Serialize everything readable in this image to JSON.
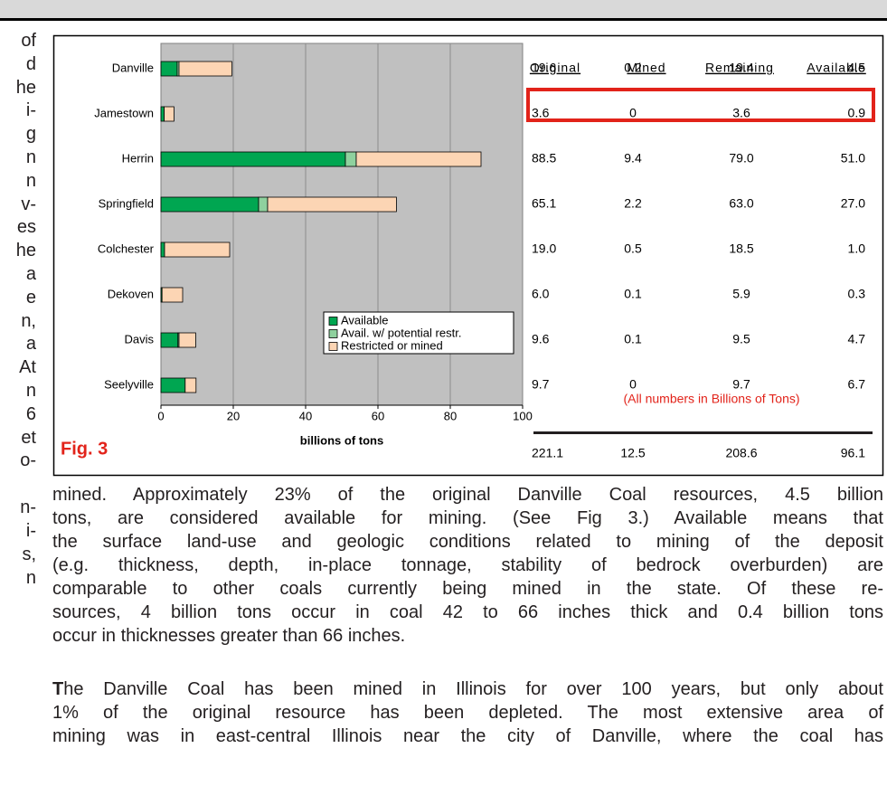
{
  "left_fragments": [
    "of",
    "d",
    "he",
    "i-",
    "g",
    "n",
    "n",
    "v-",
    "es",
    "he",
    "a",
    "e",
    "n,",
    "a",
    "At",
    "n",
    "6",
    "et",
    "o-",
    "n-",
    "i-",
    "s,",
    "n"
  ],
  "fig_label": "Fig. 3",
  "chart_data": {
    "type": "bar",
    "orientation": "horizontal",
    "stacked": true,
    "categories": [
      "Danville",
      "Jamestown",
      "Herrin",
      "Springfield",
      "Colchester",
      "Dekoven",
      "Davis",
      "Seelyville"
    ],
    "series": [
      {
        "name": "Available",
        "color": "#00a651",
        "values": [
          4.5,
          0.9,
          51,
          27,
          1.0,
          0.3,
          4.7,
          6.7
        ]
      },
      {
        "name": "Avail. w/ potential restr.",
        "color": "#8fd19e",
        "values": [
          0.5,
          0,
          3,
          2.5,
          0,
          0,
          0.3,
          0
        ]
      },
      {
        "name": "Restricted or mined",
        "color": "#fcd5b4",
        "values": [
          14.6,
          2.7,
          34.5,
          35.6,
          18.0,
          5.7,
          4.6,
          3.0
        ]
      }
    ],
    "xlim": [
      0,
      100
    ],
    "xticks": [
      0,
      20,
      40,
      60,
      80,
      100
    ],
    "xlabel": "billions of tons",
    "grid": true,
    "legend": "lower right",
    "background": "#c0c0c0"
  },
  "table": {
    "headers": [
      "Original",
      "Mined",
      "Remaining",
      "Available"
    ],
    "rows": [
      [
        "19.6",
        "0.2",
        "19.4",
        "4.5"
      ],
      [
        "3.6",
        "0",
        "3.6",
        "0.9"
      ],
      [
        "88.5",
        "9.4",
        "79.0",
        "51.0"
      ],
      [
        "65.1",
        "2.2",
        "63.0",
        "27.0"
      ],
      [
        "19.0",
        "0.5",
        "18.5",
        "1.0"
      ],
      [
        "6.0",
        "0.1",
        "5.9",
        "0.3"
      ],
      [
        "9.6",
        "0.1",
        "9.5",
        "4.7"
      ],
      [
        "9.7",
        "0",
        "9.7",
        "6.7"
      ]
    ],
    "note": "(All numbers in Billions of Tons)",
    "totals": [
      "221.1",
      "12.5",
      "208.6",
      "96.1"
    ]
  },
  "paragraphs": [
    [
      "mined.  Approximately 23% of the original Danville Coal resources, 4.5 billion",
      "tons, are considered available for mining. (See Fig 3.)  Available means that",
      "the surface land-use and geologic conditions related to mining of the deposit",
      "(e.g. thickness, depth, in-place tonnage, stability of bedrock overburden) are",
      "comparable to other coals currently being mined in the state.  Of these re-",
      "sources, 4 billion tons occur in coal 42 to 66 inches thick and 0.4 billion tons",
      "occur in thicknesses greater than 66 inches."
    ],
    [
      "The Danville Coal has been mined in Illinois for over 100 years, but only about",
      "1% of the original resource has been depleted. The most extensive area of",
      "mining was in east-central Illinois near the city of Danville, where the coal has"
    ]
  ]
}
